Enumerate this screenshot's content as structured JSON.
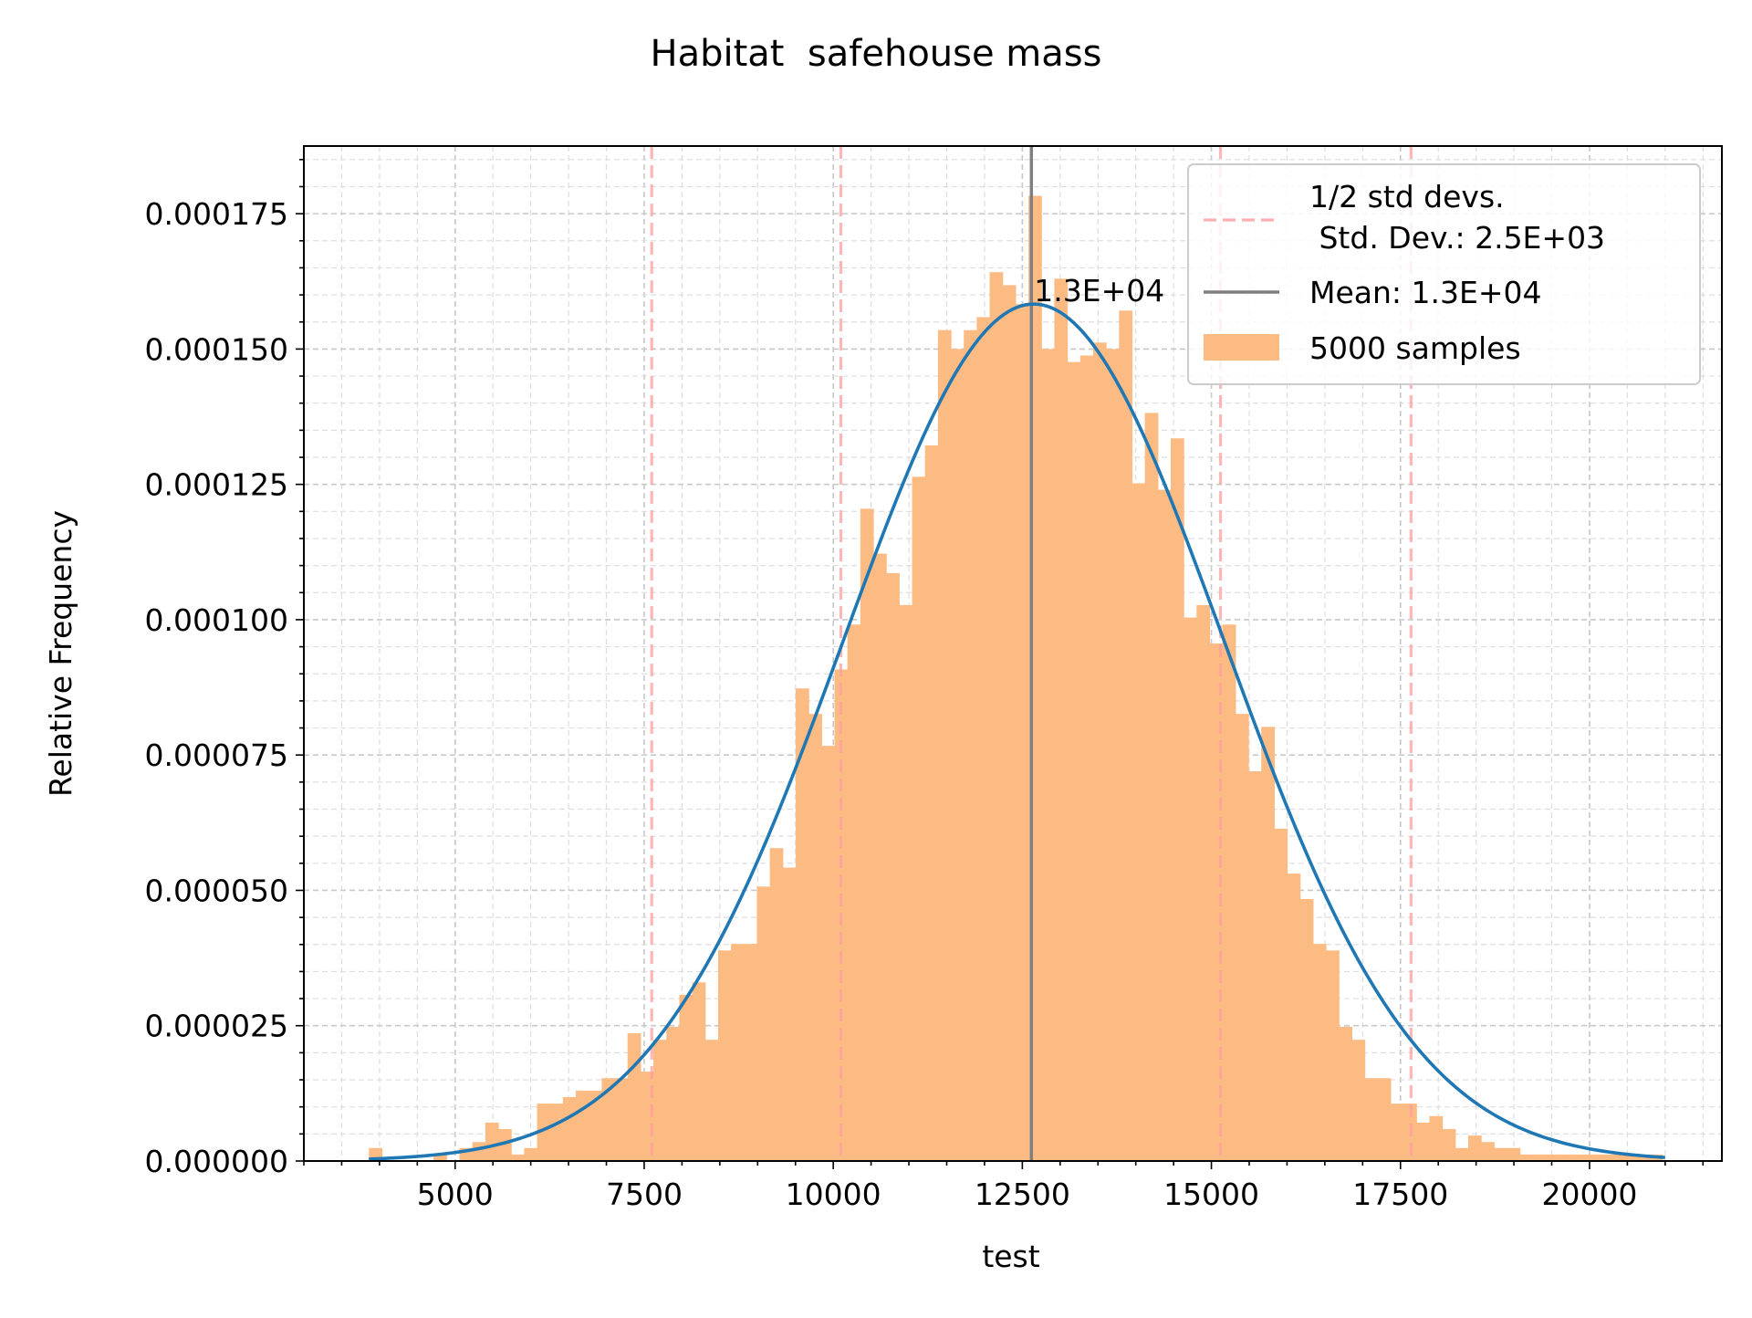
{
  "chart_data": {
    "type": "bar",
    "title": "Habitat  safehouse mass",
    "xlabel": "test",
    "ylabel": "Relative Frequency",
    "xlim": [
      3000,
      21750
    ],
    "ylim": [
      0,
      0.0001875
    ],
    "x_ticks": [
      5000,
      7500,
      10000,
      12500,
      15000,
      17500,
      20000
    ],
    "x_tick_labels": [
      "5000",
      "7500",
      "10000",
      "12500",
      "15000",
      "17500",
      "20000"
    ],
    "y_ticks": [
      0,
      2.5e-05,
      5e-05,
      7.5e-05,
      0.0001,
      0.000125,
      0.00015,
      0.000175
    ],
    "y_tick_labels": [
      "0.000000",
      "0.000025",
      "0.000050",
      "0.000075",
      "0.000100",
      "0.000125",
      "0.000150",
      "0.000175"
    ],
    "grid": "major and minor, dashed",
    "legend_position": "top-right",
    "colors": {
      "histogram": "#fdbb84",
      "fit_curve": "#1f77b4",
      "mean_line": "#7f7f7f",
      "std_lines": "#ff9e9e"
    },
    "histogram": {
      "name": "5000 samples",
      "bin_start": 3860,
      "bin_width": 171,
      "values": [
        2.4e-06,
        0,
        0,
        0,
        0,
        1.2e-06,
        0,
        2.4e-06,
        3.5e-06,
        7.1e-06,
        5.9e-06,
        1.2e-06,
        2.4e-06,
        1.06e-05,
        1.06e-05,
        1.18e-05,
        1.3e-05,
        1.3e-05,
        1.53e-05,
        1.53e-05,
        2.36e-05,
        1.65e-05,
        2.24e-05,
        2.48e-05,
        3.07e-05,
        3.3e-05,
        2.24e-05,
        3.89e-05,
        4.01e-05,
        4.01e-05,
        5.07e-05,
        5.78e-05,
        5.42e-05,
        8.73e-05,
        8.26e-05,
        7.67e-05,
        9.08e-05,
        9.91e-05,
        0.0001205,
        0.0001122,
        0.0001086,
        0.0001027,
        0.0001264,
        0.0001322,
        0.0001535,
        0.00015,
        0.0001535,
        0.0001559,
        0.0001642,
        0.0001618,
        0.0001583,
        0.0001783,
        0.00015,
        0.000163,
        0.0001476,
        0.0001488,
        0.0001512,
        0.00015,
        0.0001571,
        0.0001252,
        0.0001382,
        0.000124,
        0.0001335,
        0.0001004,
        0.0001027,
        9.56e-05,
        9.91e-05,
        8.26e-05,
        7.2e-05,
        8.02e-05,
        6.14e-05,
        5.31e-05,
        4.84e-05,
        4.01e-05,
        3.89e-05,
        2.48e-05,
        2.24e-05,
        1.53e-05,
        1.53e-05,
        1.06e-05,
        1.06e-05,
        7.1e-06,
        8.3e-06,
        5.9e-06,
        2.4e-06,
        4.7e-06,
        3.5e-06,
        2.4e-06,
        2.4e-06,
        1.2e-06,
        1.2e-06,
        1.2e-06,
        1.2e-06,
        1.2e-06,
        1.2e-06,
        1.2e-06,
        1.2e-06,
        1.2e-06,
        1.2e-06,
        1.2e-06
      ]
    },
    "fit_curve": {
      "mean": 12650,
      "std": 2520,
      "x_range": [
        3860,
        21000
      ]
    },
    "mean_line": {
      "x": 12620,
      "legend": "Mean: 1.3E+04",
      "annotation": "1.3E+04"
    },
    "std_lines": {
      "x": [
        7600,
        10100,
        15120,
        17640
      ],
      "legend": "1/2 std devs.\n Std. Dev.: 2.5E+03"
    },
    "legend": [
      {
        "label": "1/2 std devs.",
        "style": "dashed"
      },
      {
        "label": " Std. Dev.: 2.5E+03",
        "style": "none"
      },
      {
        "label": "Mean: 1.3E+04",
        "style": "line"
      },
      {
        "label": "5000 samples",
        "style": "patch"
      }
    ]
  }
}
